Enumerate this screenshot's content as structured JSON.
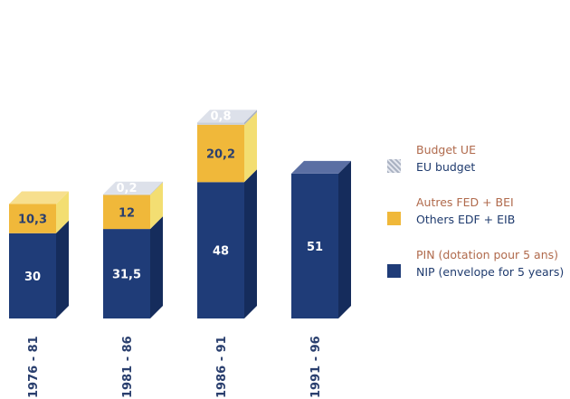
{
  "chart_data": {
    "type": "bar",
    "stacked": true,
    "categories": [
      "1976 - 81",
      "1981 - 86",
      "1986 - 91",
      "1991 - 96"
    ],
    "series": [
      {
        "key": "nip",
        "name": "PIN (dotation pour 5 ans) / NIP (envelope for 5 years)",
        "values": [
          30,
          31.5,
          48,
          51
        ],
        "labels": [
          "30",
          "31,5",
          "48",
          "51"
        ],
        "color": "#1f3c78"
      },
      {
        "key": "edf",
        "name": "Autres FED + BEI / Others EDF + EIB",
        "values": [
          10.3,
          12,
          20.2,
          0
        ],
        "labels": [
          "10,3",
          "12",
          "20,2",
          ""
        ],
        "color": "#f0b83a"
      },
      {
        "key": "eu",
        "name": "Budget UE / EU budget",
        "values": [
          0,
          0.2,
          0.8,
          0
        ],
        "labels": [
          "",
          "0,2",
          "0,8",
          ""
        ],
        "color": "#c9cfd9"
      }
    ],
    "ylim": [
      0,
      70
    ],
    "grid": false,
    "legend_position": "right"
  },
  "legend": [
    {
      "fr": "Budget UE",
      "en": "EU budget",
      "icon": "gray-dotted-square"
    },
    {
      "fr": "Autres FED + BEI",
      "en": "Others EDF + EIB",
      "icon": "yellow-square"
    },
    {
      "fr": "PIN (dotation pour 5 ans)",
      "en": "NIP (envelope for 5 years)",
      "icon": "blue-square"
    }
  ],
  "colors": {
    "nip_front": "#1f3c78",
    "nip_top": "#5b6fa3",
    "nip_side": "#152c5c",
    "edf_front": "#f0b83a",
    "edf_top": "#f7df8e",
    "edf_side": "#f3de72",
    "eu_front": "#c9cfd9",
    "eu_top": "#dde1ea",
    "eu_side": "#aab2c2",
    "label_light": "#ffffff",
    "label_dark": "#2a3f6e"
  }
}
